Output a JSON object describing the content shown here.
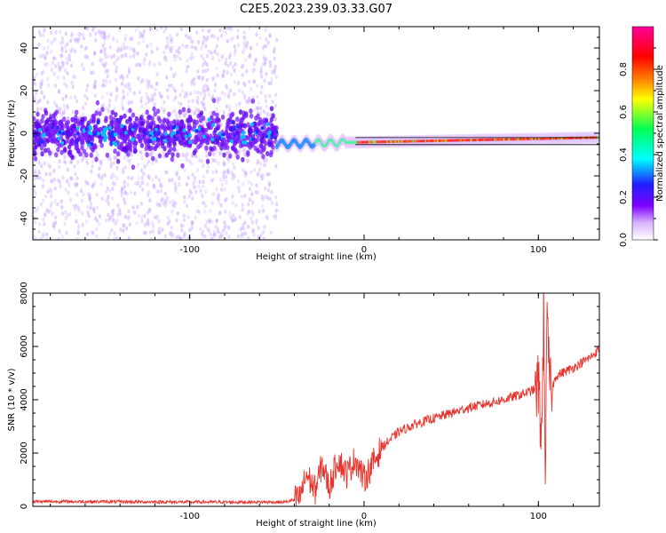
{
  "chart_data": [
    {
      "type": "heatmap",
      "title": "C2E5.2023.239.03.33.G07",
      "xlabel": "Height of straight line (km)",
      "ylabel": "Frequency (Hz)",
      "xlim": [
        -190,
        135
      ],
      "ylim": [
        -50,
        50
      ],
      "xticks": [
        -100,
        0,
        100
      ],
      "yticks": [
        -40,
        -20,
        0,
        20,
        40
      ],
      "colorbar": {
        "label": "Normalized spectral amplitude",
        "range": [
          0,
          1
        ],
        "ticks": [
          "0.0",
          "0.2",
          "0.4",
          "0.6",
          "0.8"
        ],
        "colors": [
          "#ffffff",
          "#d9b3ff",
          "#7f00ff",
          "#1f1fff",
          "#00ffff",
          "#00ff55",
          "#ffff00",
          "#ff7700",
          "#ff0000",
          "#ff0099"
        ]
      },
      "regions": [
        {
          "x_range": [
            -190,
            -50
          ],
          "description_values": {
            "freq_center": 0,
            "noise_spread": 50,
            "core_spread": 10
          }
        },
        {
          "x_range": [
            -50,
            135
          ],
          "description_values": {
            "freq_center_start": -5,
            "freq_center_end": -2,
            "line_width": 2
          }
        }
      ]
    },
    {
      "type": "line",
      "xlabel": "Height of straight line (km)",
      "ylabel": "SNR (10 * v/v)",
      "xlim": [
        -190,
        135
      ],
      "ylim": [
        0,
        8000
      ],
      "xticks": [
        -100,
        0,
        100
      ],
      "yticks": [
        0,
        2000,
        4000,
        6000,
        8000
      ],
      "color": "#e8342e",
      "series": [
        {
          "x": [
            -190,
            -160,
            -130,
            -100,
            -70,
            -45,
            -37,
            -33,
            -28,
            -24,
            -20,
            -15,
            -10,
            -5,
            0,
            5,
            10,
            15,
            20,
            30,
            40,
            50,
            60,
            70,
            80,
            90,
            95,
            98,
            100,
            102,
            103,
            104,
            105,
            107,
            110,
            120,
            130,
            135
          ],
          "y": [
            180,
            180,
            170,
            160,
            160,
            160,
            300,
            1200,
            600,
            1600,
            700,
            1800,
            1200,
            1800,
            1000,
            1600,
            2200,
            2500,
            2800,
            3100,
            3300,
            3500,
            3700,
            3850,
            4000,
            4200,
            4300,
            4400,
            4500,
            2500,
            7600,
            1500,
            6500,
            4200,
            4900,
            5200,
            5600,
            5900
          ]
        }
      ]
    }
  ]
}
